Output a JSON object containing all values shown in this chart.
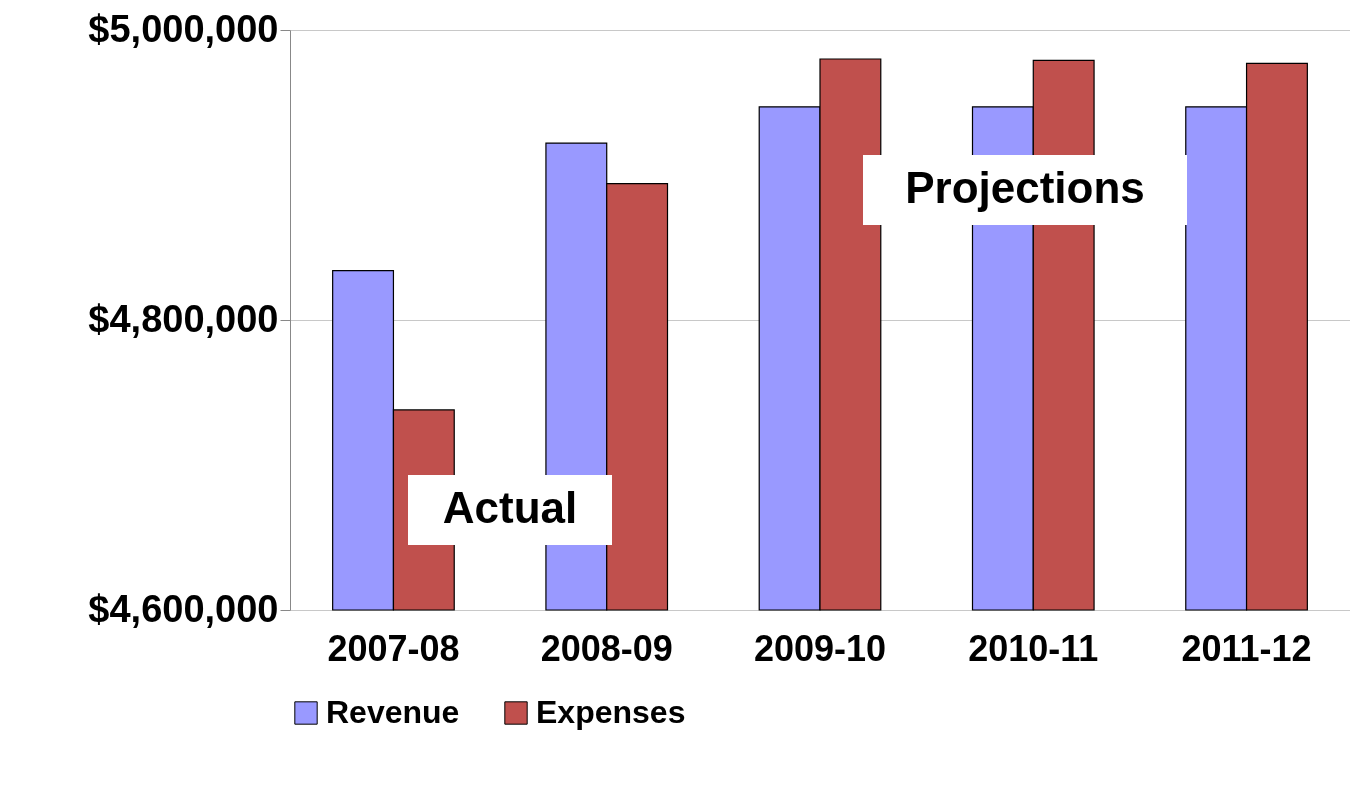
{
  "chart_data": {
    "type": "bar",
    "categories": [
      "2007-08",
      "2008-09",
      "2009-10",
      "2010-11",
      "2011-12"
    ],
    "series": [
      {
        "name": "Revenue",
        "color": "#9999ff",
        "values": [
          4834000,
          4922000,
          4947000,
          4947000,
          4947000
        ]
      },
      {
        "name": "Expenses",
        "color": "#c0504d",
        "values": [
          4738000,
          4894000,
          4980000,
          4979000,
          4977000
        ]
      }
    ],
    "ylim": [
      4600000,
      5000000
    ],
    "yticks": [
      {
        "value": 4600000,
        "label": "$4,600,000"
      },
      {
        "value": 4800000,
        "label": "$4,800,000"
      },
      {
        "value": 5000000,
        "label": "$5,000,000"
      }
    ],
    "grid": "y",
    "legend": "bottom",
    "annotations": [
      "Actual",
      "Projections"
    ]
  }
}
